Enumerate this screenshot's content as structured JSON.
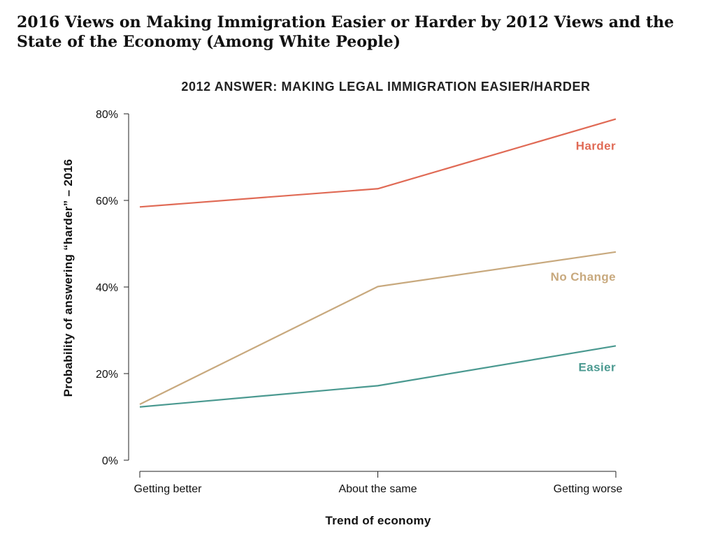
{
  "title": "2016 Views on Making Immigration Easier or Harder by 2012 Views and the State of the Economy (Among White People)",
  "chart_data": {
    "type": "line",
    "title": "2012 ANSWER: MAKING LEGAL IMMIGRATION EASIER/HARDER",
    "xlabel": "Trend of economy",
    "ylabel": "Probability of answering “harder” – 2016",
    "categories": [
      "Getting better",
      "About the same",
      "Getting worse"
    ],
    "ylim": [
      0,
      80
    ],
    "yticks": [
      "0%",
      "20%",
      "40%",
      "60%",
      "80%"
    ],
    "ytick_values": [
      0,
      20,
      40,
      60,
      80
    ],
    "grid": false,
    "legend": "direct labels at right end of lines",
    "series": [
      {
        "name": "Harder",
        "values": [
          58.5,
          62.7,
          78.8
        ],
        "color": "#e06a55"
      },
      {
        "name": "No Change",
        "values": [
          12.9,
          40.1,
          48.1
        ],
        "color": "#c8a97e"
      },
      {
        "name": "Easier",
        "values": [
          12.3,
          17.2,
          26.4
        ],
        "color": "#4a9990"
      }
    ]
  }
}
